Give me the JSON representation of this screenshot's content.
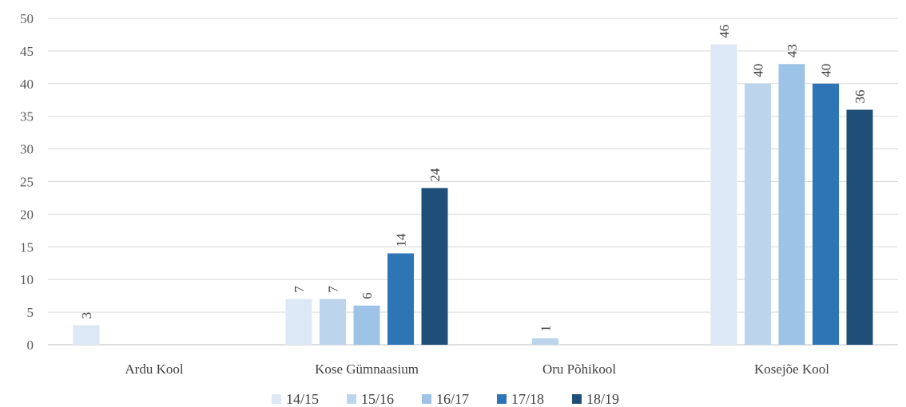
{
  "chart_data": {
    "type": "bar",
    "title": "",
    "xlabel": "",
    "ylabel": "",
    "ylim": [
      0,
      50
    ],
    "yticks": [
      0,
      5,
      10,
      15,
      20,
      25,
      30,
      35,
      40,
      45,
      50
    ],
    "grid": true,
    "legend_position": "bottom",
    "categories": [
      "Ardu Kool",
      "Kose Gümnaasium",
      "Oru Põhikool",
      "Kosejõe Kool"
    ],
    "series": [
      {
        "name": "14/15",
        "color": "#dce8f5",
        "values": [
          3,
          7,
          0,
          46
        ],
        "labels": [
          "3",
          "7",
          "",
          "46"
        ]
      },
      {
        "name": "15/16",
        "color": "#bcd5ed",
        "values": [
          0,
          7,
          1,
          40
        ],
        "labels": [
          "",
          "7",
          "1",
          "40"
        ]
      },
      {
        "name": "16/17",
        "color": "#9dc3e6",
        "values": [
          0,
          6,
          0,
          43
        ],
        "labels": [
          "",
          "6",
          "",
          "43"
        ]
      },
      {
        "name": "17/18",
        "color": "#2e75b6",
        "values": [
          0,
          14,
          0,
          40
        ],
        "labels": [
          "",
          "14",
          "",
          "40"
        ]
      },
      {
        "name": "18/19",
        "color": "#1f4e79",
        "values": [
          0,
          24,
          0,
          36
        ],
        "labels": [
          "",
          "24",
          "",
          "36"
        ]
      }
    ]
  }
}
